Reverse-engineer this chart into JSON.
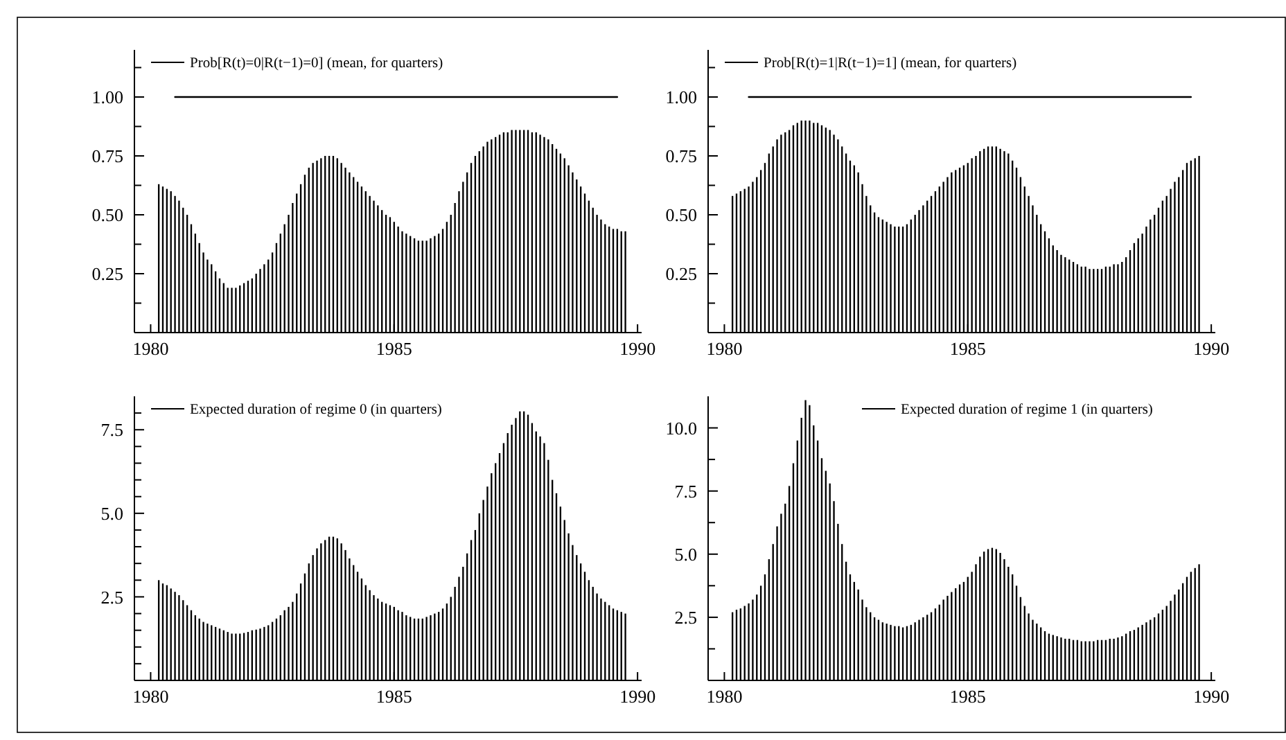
{
  "chart_data": [
    {
      "type": "bar",
      "x": [
        "1980-03",
        "1980-04",
        "1980-05",
        "1980-06",
        "1980-07",
        "1980-08",
        "1980-09",
        "1980-10",
        "1980-11",
        "1980-12",
        "1981-01",
        "1981-02",
        "1981-03",
        "1981-04",
        "1981-05",
        "1981-06",
        "1981-07",
        "1981-08",
        "1981-09",
        "1981-10",
        "1981-11",
        "1981-12",
        "1982-01",
        "1982-02",
        "1982-03",
        "1982-04",
        "1982-05",
        "1982-06",
        "1982-07",
        "1982-08",
        "1982-09",
        "1982-10",
        "1982-11",
        "1982-12",
        "1983-01",
        "1983-02",
        "1983-03",
        "1983-04",
        "1983-05",
        "1983-06",
        "1983-07",
        "1983-08",
        "1983-09",
        "1983-10",
        "1983-11",
        "1983-12",
        "1984-01",
        "1984-02",
        "1984-03",
        "1984-04",
        "1984-05",
        "1984-06",
        "1984-07",
        "1984-08",
        "1984-09",
        "1984-10",
        "1984-11",
        "1984-12",
        "1985-01",
        "1985-02",
        "1985-03",
        "1985-04",
        "1985-05",
        "1985-06",
        "1985-07",
        "1985-08",
        "1985-09",
        "1985-10",
        "1985-11",
        "1985-12",
        "1986-01",
        "1986-02",
        "1986-03",
        "1986-04",
        "1986-05",
        "1986-06",
        "1986-07",
        "1986-08",
        "1986-09",
        "1986-10",
        "1986-11",
        "1986-12",
        "1987-01",
        "1987-02",
        "1987-03",
        "1987-04",
        "1987-05",
        "1987-06",
        "1987-07",
        "1987-08",
        "1987-09",
        "1987-10",
        "1987-11",
        "1987-12",
        "1988-01",
        "1988-02",
        "1988-03",
        "1988-04",
        "1988-05",
        "1988-06",
        "1988-07",
        "1988-08",
        "1988-09",
        "1988-10",
        "1988-11",
        "1988-12",
        "1989-01",
        "1989-02",
        "1989-03",
        "1989-04",
        "1989-05",
        "1989-06",
        "1989-07",
        "1989-08",
        "1989-09",
        "1989-10"
      ],
      "xlim": [
        "1979-09",
        "1990-02"
      ],
      "xticks": [
        "1980",
        "1985",
        "1990"
      ],
      "ylim": [
        0,
        1.2
      ],
      "yticks": [
        {
          "value": 0.125,
          "label": null
        },
        {
          "value": 0.25,
          "label": "0.25"
        },
        {
          "value": 0.375,
          "label": null
        },
        {
          "value": 0.5,
          "label": "0.50"
        },
        {
          "value": 0.625,
          "label": null
        },
        {
          "value": 0.75,
          "label": "0.75"
        },
        {
          "value": 0.875,
          "label": null
        },
        {
          "value": 1,
          "label": "1.00"
        },
        {
          "value": 1.125,
          "label": null
        }
      ],
      "legend": "top left",
      "series": [
        {
          "name": "Prob[R(t)=0|R(t−1)=0] (mean, for quarters)",
          "color": "#000000",
          "values": [
            0.63,
            0.62,
            0.61,
            0.6,
            0.58,
            0.56,
            0.53,
            0.5,
            0.46,
            0.42,
            0.38,
            0.34,
            0.31,
            0.29,
            0.26,
            0.23,
            0.21,
            0.19,
            0.19,
            0.19,
            0.2,
            0.21,
            0.22,
            0.23,
            0.25,
            0.27,
            0.29,
            0.31,
            0.34,
            0.38,
            0.42,
            0.46,
            0.5,
            0.55,
            0.59,
            0.63,
            0.67,
            0.7,
            0.72,
            0.73,
            0.74,
            0.75,
            0.75,
            0.75,
            0.74,
            0.72,
            0.7,
            0.68,
            0.66,
            0.64,
            0.62,
            0.6,
            0.58,
            0.56,
            0.54,
            0.52,
            0.5,
            0.49,
            0.47,
            0.45,
            0.43,
            0.42,
            0.41,
            0.4,
            0.39,
            0.39,
            0.39,
            0.4,
            0.41,
            0.42,
            0.44,
            0.47,
            0.5,
            0.55,
            0.6,
            0.64,
            0.68,
            0.72,
            0.75,
            0.77,
            0.79,
            0.81,
            0.82,
            0.83,
            0.84,
            0.85,
            0.85,
            0.86,
            0.86,
            0.86,
            0.86,
            0.86,
            0.85,
            0.85,
            0.84,
            0.83,
            0.82,
            0.8,
            0.78,
            0.76,
            0.74,
            0.71,
            0.68,
            0.65,
            0.62,
            0.59,
            0.56,
            0.53,
            0.5,
            0.48,
            0.46,
            0.45,
            0.44,
            0.44,
            0.43,
            0.43
          ]
        },
        {
          "type": "line",
          "color": "#000000",
          "x": [
            "1980-07",
            "1989-08"
          ],
          "values": [
            1,
            1
          ]
        }
      ]
    },
    {
      "type": "bar",
      "x": [
        "1980-03",
        "1980-04",
        "1980-05",
        "1980-06",
        "1980-07",
        "1980-08",
        "1980-09",
        "1980-10",
        "1980-11",
        "1980-12",
        "1981-01",
        "1981-02",
        "1981-03",
        "1981-04",
        "1981-05",
        "1981-06",
        "1981-07",
        "1981-08",
        "1981-09",
        "1981-10",
        "1981-11",
        "1981-12",
        "1982-01",
        "1982-02",
        "1982-03",
        "1982-04",
        "1982-05",
        "1982-06",
        "1982-07",
        "1982-08",
        "1982-09",
        "1982-10",
        "1982-11",
        "1982-12",
        "1983-01",
        "1983-02",
        "1983-03",
        "1983-04",
        "1983-05",
        "1983-06",
        "1983-07",
        "1983-08",
        "1983-09",
        "1983-10",
        "1983-11",
        "1983-12",
        "1984-01",
        "1984-02",
        "1984-03",
        "1984-04",
        "1984-05",
        "1984-06",
        "1984-07",
        "1984-08",
        "1984-09",
        "1984-10",
        "1984-11",
        "1984-12",
        "1985-01",
        "1985-02",
        "1985-03",
        "1985-04",
        "1985-05",
        "1985-06",
        "1985-07",
        "1985-08",
        "1985-09",
        "1985-10",
        "1985-11",
        "1985-12",
        "1986-01",
        "1986-02",
        "1986-03",
        "1986-04",
        "1986-05",
        "1986-06",
        "1986-07",
        "1986-08",
        "1986-09",
        "1986-10",
        "1986-11",
        "1986-12",
        "1987-01",
        "1987-02",
        "1987-03",
        "1987-04",
        "1987-05",
        "1987-06",
        "1987-07",
        "1987-08",
        "1987-09",
        "1987-10",
        "1987-11",
        "1987-12",
        "1988-01",
        "1988-02",
        "1988-03",
        "1988-04",
        "1988-05",
        "1988-06",
        "1988-07",
        "1988-08",
        "1988-09",
        "1988-10",
        "1988-11",
        "1988-12",
        "1989-01",
        "1989-02",
        "1989-03",
        "1989-04",
        "1989-05",
        "1989-06",
        "1989-07",
        "1989-08",
        "1989-09",
        "1989-10"
      ],
      "xlim": [
        "1979-09",
        "1990-02"
      ],
      "xticks": [
        "1980",
        "1985",
        "1990"
      ],
      "ylim": [
        0,
        1.2
      ],
      "yticks": [
        {
          "value": 0.125,
          "label": null
        },
        {
          "value": 0.25,
          "label": "0.25"
        },
        {
          "value": 0.375,
          "label": null
        },
        {
          "value": 0.5,
          "label": "0.50"
        },
        {
          "value": 0.625,
          "label": null
        },
        {
          "value": 0.75,
          "label": "0.75"
        },
        {
          "value": 0.875,
          "label": null
        },
        {
          "value": 1,
          "label": "1.00"
        },
        {
          "value": 1.125,
          "label": null
        }
      ],
      "legend": "top left",
      "series": [
        {
          "name": "Prob[R(t)=1|R(t−1)=1] (mean, for quarters)",
          "color": "#000000",
          "values": [
            0.58,
            0.59,
            0.6,
            0.61,
            0.62,
            0.64,
            0.66,
            0.69,
            0.72,
            0.76,
            0.79,
            0.82,
            0.84,
            0.85,
            0.86,
            0.88,
            0.89,
            0.9,
            0.9,
            0.9,
            0.89,
            0.89,
            0.88,
            0.87,
            0.86,
            0.84,
            0.82,
            0.79,
            0.76,
            0.73,
            0.71,
            0.68,
            0.63,
            0.58,
            0.54,
            0.51,
            0.49,
            0.48,
            0.47,
            0.46,
            0.45,
            0.45,
            0.45,
            0.46,
            0.48,
            0.5,
            0.52,
            0.54,
            0.56,
            0.58,
            0.6,
            0.62,
            0.64,
            0.66,
            0.68,
            0.69,
            0.7,
            0.71,
            0.72,
            0.74,
            0.75,
            0.77,
            0.78,
            0.79,
            0.79,
            0.79,
            0.78,
            0.77,
            0.76,
            0.73,
            0.7,
            0.66,
            0.62,
            0.58,
            0.54,
            0.5,
            0.46,
            0.43,
            0.4,
            0.37,
            0.35,
            0.33,
            0.32,
            0.31,
            0.3,
            0.29,
            0.28,
            0.28,
            0.27,
            0.27,
            0.27,
            0.27,
            0.28,
            0.28,
            0.29,
            0.29,
            0.3,
            0.32,
            0.35,
            0.38,
            0.4,
            0.42,
            0.45,
            0.48,
            0.5,
            0.53,
            0.56,
            0.58,
            0.61,
            0.64,
            0.66,
            0.69,
            0.72,
            0.73,
            0.74,
            0.75
          ]
        },
        {
          "type": "line",
          "color": "#000000",
          "x": [
            "1980-07",
            "1989-08"
          ],
          "values": [
            1,
            1
          ]
        }
      ]
    },
    {
      "type": "bar",
      "x": [
        "1980-03",
        "1980-04",
        "1980-05",
        "1980-06",
        "1980-07",
        "1980-08",
        "1980-09",
        "1980-10",
        "1980-11",
        "1980-12",
        "1981-01",
        "1981-02",
        "1981-03",
        "1981-04",
        "1981-05",
        "1981-06",
        "1981-07",
        "1981-08",
        "1981-09",
        "1981-10",
        "1981-11",
        "1981-12",
        "1982-01",
        "1982-02",
        "1982-03",
        "1982-04",
        "1982-05",
        "1982-06",
        "1982-07",
        "1982-08",
        "1982-09",
        "1982-10",
        "1982-11",
        "1982-12",
        "1983-01",
        "1983-02",
        "1983-03",
        "1983-04",
        "1983-05",
        "1983-06",
        "1983-07",
        "1983-08",
        "1983-09",
        "1983-10",
        "1983-11",
        "1983-12",
        "1984-01",
        "1984-02",
        "1984-03",
        "1984-04",
        "1984-05",
        "1984-06",
        "1984-07",
        "1984-08",
        "1984-09",
        "1984-10",
        "1984-11",
        "1984-12",
        "1985-01",
        "1985-02",
        "1985-03",
        "1985-04",
        "1985-05",
        "1985-06",
        "1985-07",
        "1985-08",
        "1985-09",
        "1985-10",
        "1985-11",
        "1985-12",
        "1986-01",
        "1986-02",
        "1986-03",
        "1986-04",
        "1986-05",
        "1986-06",
        "1986-07",
        "1986-08",
        "1986-09",
        "1986-10",
        "1986-11",
        "1986-12",
        "1987-01",
        "1987-02",
        "1987-03",
        "1987-04",
        "1987-05",
        "1987-06",
        "1987-07",
        "1987-08",
        "1987-09",
        "1987-10",
        "1987-11",
        "1987-12",
        "1988-01",
        "1988-02",
        "1988-03",
        "1988-04",
        "1988-05",
        "1988-06",
        "1988-07",
        "1988-08",
        "1988-09",
        "1988-10",
        "1988-11",
        "1988-12",
        "1989-01",
        "1989-02",
        "1989-03",
        "1989-04",
        "1989-05",
        "1989-06",
        "1989-07",
        "1989-08",
        "1989-09",
        "1989-10"
      ],
      "xlim": [
        "1979-09",
        "1990-02"
      ],
      "xticks": [
        "1980",
        "1985",
        "1990"
      ],
      "ylim": [
        0,
        8.5
      ],
      "yticks": [
        {
          "value": 0.5,
          "label": null
        },
        {
          "value": 1,
          "label": null
        },
        {
          "value": 1.5,
          "label": null
        },
        {
          "value": 2,
          "label": null
        },
        {
          "value": 2.5,
          "label": "2.5"
        },
        {
          "value": 3,
          "label": null
        },
        {
          "value": 3.5,
          "label": null
        },
        {
          "value": 4,
          "label": null
        },
        {
          "value": 4.5,
          "label": null
        },
        {
          "value": 5,
          "label": "5.0"
        },
        {
          "value": 5.5,
          "label": null
        },
        {
          "value": 6,
          "label": null
        },
        {
          "value": 6.5,
          "label": null
        },
        {
          "value": 7,
          "label": null
        },
        {
          "value": 7.5,
          "label": "7.5"
        },
        {
          "value": 8,
          "label": null
        }
      ],
      "legend": "top left",
      "series": [
        {
          "name": "Expected duration of regime 0 (in quarters)",
          "color": "#000000",
          "values": [
            3.0,
            2.9,
            2.85,
            2.75,
            2.65,
            2.55,
            2.4,
            2.25,
            2.1,
            1.95,
            1.85,
            1.75,
            1.7,
            1.65,
            1.6,
            1.55,
            1.5,
            1.45,
            1.4,
            1.4,
            1.4,
            1.42,
            1.45,
            1.5,
            1.52,
            1.55,
            1.6,
            1.65,
            1.75,
            1.85,
            1.95,
            2.1,
            2.2,
            2.35,
            2.6,
            2.9,
            3.2,
            3.5,
            3.75,
            3.95,
            4.1,
            4.2,
            4.3,
            4.3,
            4.25,
            4.1,
            3.9,
            3.65,
            3.45,
            3.25,
            3.05,
            2.85,
            2.7,
            2.55,
            2.45,
            2.35,
            2.3,
            2.25,
            2.2,
            2.1,
            2.05,
            1.95,
            1.9,
            1.85,
            1.85,
            1.85,
            1.9,
            1.95,
            2.0,
            2.05,
            2.15,
            2.3,
            2.5,
            2.8,
            3.1,
            3.4,
            3.8,
            4.2,
            4.5,
            5.0,
            5.4,
            5.8,
            6.2,
            6.5,
            6.8,
            7.1,
            7.4,
            7.65,
            7.85,
            8.05,
            8.05,
            7.95,
            7.7,
            7.45,
            7.3,
            7.1,
            6.6,
            6.0,
            5.6,
            5.2,
            4.8,
            4.4,
            4.05,
            3.75,
            3.5,
            3.25,
            3.0,
            2.8,
            2.6,
            2.45,
            2.35,
            2.25,
            2.15,
            2.1,
            2.05,
            2.0
          ]
        }
      ]
    },
    {
      "type": "bar",
      "x": [
        "1980-03",
        "1980-04",
        "1980-05",
        "1980-06",
        "1980-07",
        "1980-08",
        "1980-09",
        "1980-10",
        "1980-11",
        "1980-12",
        "1981-01",
        "1981-02",
        "1981-03",
        "1981-04",
        "1981-05",
        "1981-06",
        "1981-07",
        "1981-08",
        "1981-09",
        "1981-10",
        "1981-11",
        "1981-12",
        "1982-01",
        "1982-02",
        "1982-03",
        "1982-04",
        "1982-05",
        "1982-06",
        "1982-07",
        "1982-08",
        "1982-09",
        "1982-10",
        "1982-11",
        "1982-12",
        "1983-01",
        "1983-02",
        "1983-03",
        "1983-04",
        "1983-05",
        "1983-06",
        "1983-07",
        "1983-08",
        "1983-09",
        "1983-10",
        "1983-11",
        "1983-12",
        "1984-01",
        "1984-02",
        "1984-03",
        "1984-04",
        "1984-05",
        "1984-06",
        "1984-07",
        "1984-08",
        "1984-09",
        "1984-10",
        "1984-11",
        "1984-12",
        "1985-01",
        "1985-02",
        "1985-03",
        "1985-04",
        "1985-05",
        "1985-06",
        "1985-07",
        "1985-08",
        "1985-09",
        "1985-10",
        "1985-11",
        "1985-12",
        "1986-01",
        "1986-02",
        "1986-03",
        "1986-04",
        "1986-05",
        "1986-06",
        "1986-07",
        "1986-08",
        "1986-09",
        "1986-10",
        "1986-11",
        "1986-12",
        "1987-01",
        "1987-02",
        "1987-03",
        "1987-04",
        "1987-05",
        "1987-06",
        "1987-07",
        "1987-08",
        "1987-09",
        "1987-10",
        "1987-11",
        "1987-12",
        "1988-01",
        "1988-02",
        "1988-03",
        "1988-04",
        "1988-05",
        "1988-06",
        "1988-07",
        "1988-08",
        "1988-09",
        "1988-10",
        "1988-11",
        "1988-12",
        "1989-01",
        "1989-02",
        "1989-03",
        "1989-04",
        "1989-05",
        "1989-06",
        "1989-07",
        "1989-08",
        "1989-09",
        "1989-10"
      ],
      "xlim": [
        "1979-09",
        "1990-02"
      ],
      "xticks": [
        "1980",
        "1985",
        "1990"
      ],
      "ylim": [
        0,
        11.25
      ],
      "yticks": [
        {
          "value": 1.25,
          "label": null
        },
        {
          "value": 2.5,
          "label": "2.5"
        },
        {
          "value": 3.75,
          "label": null
        },
        {
          "value": 5,
          "label": "5.0"
        },
        {
          "value": 6.25,
          "label": null
        },
        {
          "value": 7.5,
          "label": "7.5"
        },
        {
          "value": 8.75,
          "label": null
        },
        {
          "value": 10,
          "label": "10.0"
        }
      ],
      "legend": "top right",
      "series": [
        {
          "name": "Expected duration of regime 1 (in quarters)",
          "color": "#000000",
          "values": [
            2.7,
            2.8,
            2.85,
            2.95,
            3.05,
            3.2,
            3.4,
            3.75,
            4.2,
            4.8,
            5.4,
            6.1,
            6.6,
            7.0,
            7.7,
            8.6,
            9.5,
            10.4,
            11.1,
            10.9,
            10.1,
            9.5,
            8.8,
            8.3,
            7.8,
            7.1,
            6.2,
            5.4,
            4.7,
            4.2,
            3.9,
            3.6,
            3.2,
            2.9,
            2.7,
            2.5,
            2.4,
            2.3,
            2.25,
            2.2,
            2.15,
            2.15,
            2.1,
            2.15,
            2.2,
            2.3,
            2.4,
            2.5,
            2.6,
            2.7,
            2.85,
            3.0,
            3.2,
            3.35,
            3.5,
            3.65,
            3.8,
            3.9,
            4.1,
            4.3,
            4.6,
            4.9,
            5.1,
            5.2,
            5.25,
            5.2,
            5.05,
            4.8,
            4.5,
            4.2,
            3.75,
            3.3,
            2.95,
            2.65,
            2.4,
            2.25,
            2.1,
            1.95,
            1.85,
            1.8,
            1.75,
            1.7,
            1.65,
            1.65,
            1.6,
            1.6,
            1.55,
            1.55,
            1.55,
            1.55,
            1.6,
            1.6,
            1.6,
            1.65,
            1.65,
            1.7,
            1.75,
            1.85,
            1.95,
            2.0,
            2.1,
            2.2,
            2.3,
            2.4,
            2.5,
            2.65,
            2.8,
            2.95,
            3.15,
            3.4,
            3.6,
            3.85,
            4.1,
            4.3,
            4.45,
            4.6
          ]
        }
      ]
    }
  ]
}
